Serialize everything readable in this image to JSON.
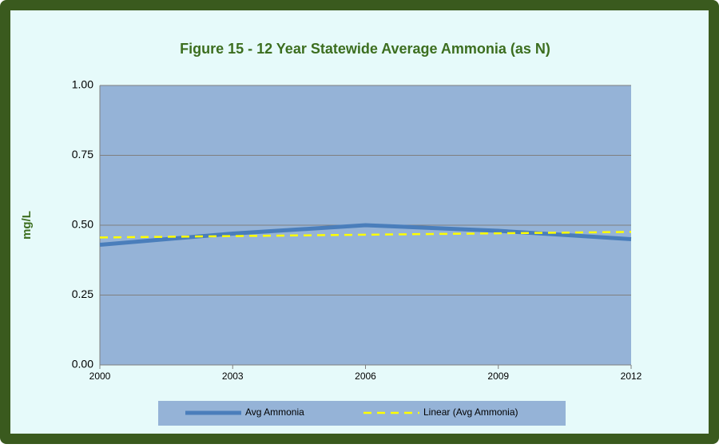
{
  "chart_data": {
    "type": "line",
    "title": "Figure 15 - 12 Year Statewide Average Ammonia (as N)",
    "y_label": "mg/L",
    "x": [
      2000,
      2003,
      2006,
      2009,
      2012
    ],
    "series": [
      {
        "name": "Avg Ammonia",
        "color": "#4a7ebb",
        "values": [
          0.43,
          0.47,
          0.5,
          0.48,
          0.45
        ]
      },
      {
        "name": "Linear (Avg Ammonia)",
        "color": "#ffff00",
        "dashed": true,
        "values": [
          0.456,
          0.461,
          0.466,
          0.471,
          0.476
        ]
      }
    ],
    "xlim": [
      2000,
      2012
    ],
    "xticks": [
      2000,
      2003,
      2006,
      2009,
      2012
    ],
    "ylim": [
      0,
      1
    ],
    "yticks": [
      {
        "value": 0,
        "label": "0.00"
      },
      {
        "value": 0.25,
        "label": "0.25"
      },
      {
        "value": 0.5,
        "label": "0.50"
      },
      {
        "value": 0.75,
        "label": "0.75"
      },
      {
        "value": 1,
        "label": "1.00"
      }
    ],
    "grid": true,
    "legend": "bottom"
  }
}
